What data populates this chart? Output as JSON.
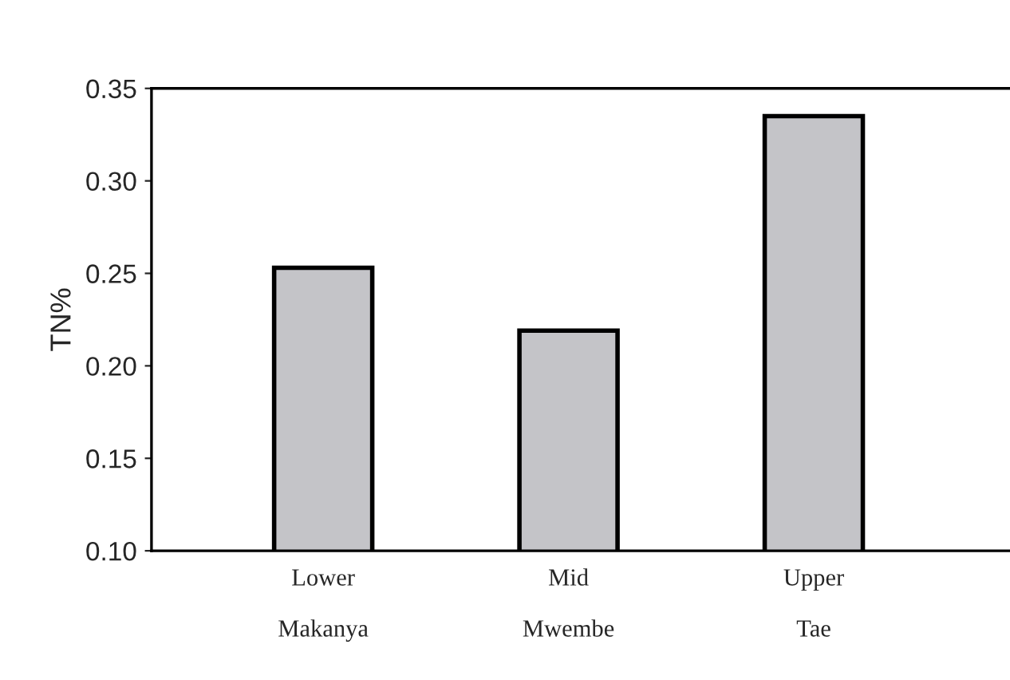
{
  "chart_data": {
    "type": "bar",
    "ylabel": "TN%",
    "categories": [
      "Lower\n\nMakanya",
      "Mid\n\nMwembe",
      "Upper\n\nTae"
    ],
    "values": [
      0.253,
      0.219,
      0.335
    ],
    "color": "#c4c4c8",
    "ylim": [
      0.1,
      0.35
    ],
    "yticks": [
      {
        "value": 0.1,
        "label": "0.10"
      },
      {
        "value": 0.15,
        "label": "0.15"
      },
      {
        "value": 0.2,
        "label": "0.20"
      },
      {
        "value": 0.25,
        "label": "0.25"
      },
      {
        "value": 0.3,
        "label": "0.30"
      },
      {
        "value": 0.35,
        "label": "0.35"
      }
    ],
    "grid": false,
    "legend": false
  }
}
